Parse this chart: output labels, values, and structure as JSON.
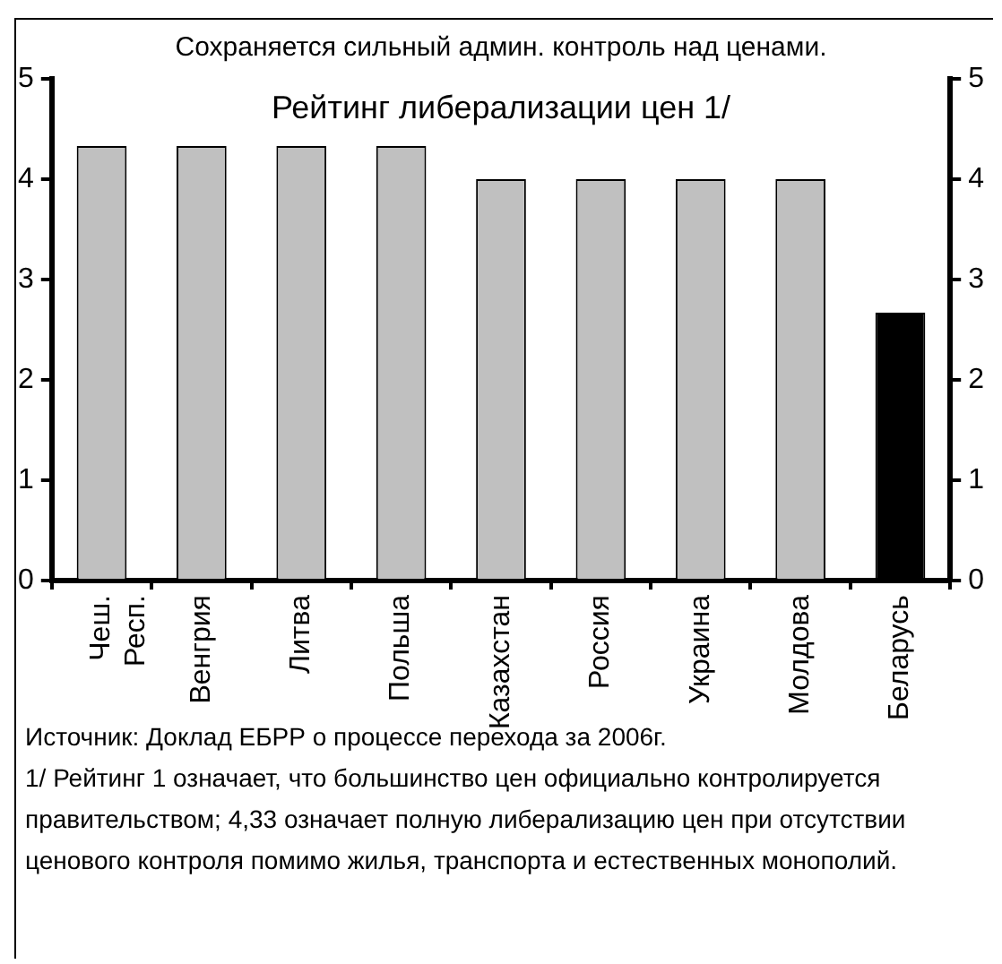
{
  "chart_data": {
    "type": "bar",
    "title": "Сохраняется сильный админ. контроль над ценами.",
    "subtitle": "Рейтинг либерализации цен 1/",
    "categories": [
      "Чеш. Респ.",
      "Венгрия",
      "Литва",
      "Польша",
      "Казахстан",
      "Россия",
      "Украина",
      "Молдова",
      "Беларусь"
    ],
    "values": [
      4.33,
      4.33,
      4.33,
      4.33,
      4,
      4,
      4,
      4,
      2.67
    ],
    "colors": [
      "#c0c0c0",
      "#c0c0c0",
      "#c0c0c0",
      "#c0c0c0",
      "#c0c0c0",
      "#c0c0c0",
      "#c0c0c0",
      "#c0c0c0",
      "#000000"
    ],
    "ylim": [
      0,
      5
    ],
    "yticks": [
      0,
      1,
      2,
      3,
      4,
      5
    ],
    "y2lim": [
      0,
      5
    ],
    "y2ticks": [
      0,
      1,
      2,
      3,
      4,
      5
    ],
    "grid": false,
    "legend": false,
    "annotations": [
      "Источник: Доклад ЕБРР о процессе перехода за 2006г.",
      "1/ Рейтинг 1 означает, что большинство цен официально контролируется правительством; 4,33 означает полную либерализацию цен при отсутствии ценового контроля помимо жилья, транспорта и естественных монополий."
    ]
  }
}
